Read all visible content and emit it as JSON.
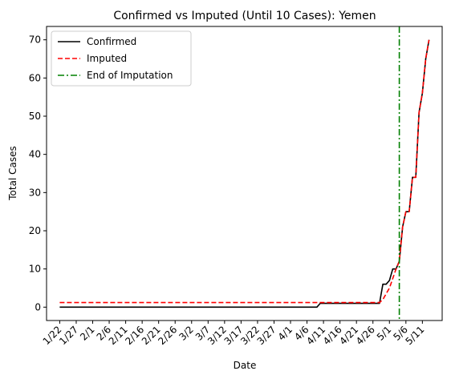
{
  "chart_data": {
    "type": "line",
    "title": "Confirmed vs Imputed (Until 10 Cases): Yemen",
    "xlabel": "Date",
    "ylabel": "Total Cases",
    "x_tick_labels": [
      "1/22",
      "1/27",
      "2/1",
      "2/6",
      "2/11",
      "2/16",
      "2/21",
      "2/26",
      "3/2",
      "3/7",
      "3/12",
      "3/17",
      "3/22",
      "3/27",
      "4/1",
      "4/6",
      "4/11",
      "4/16",
      "4/21",
      "4/26",
      "5/1",
      "5/6",
      "5/11"
    ],
    "xlim": [
      "1/18",
      "5/17"
    ],
    "ylim": [
      -3.5,
      73.5
    ],
    "y_ticks": [
      0,
      10,
      20,
      30,
      40,
      50,
      60,
      70
    ],
    "legend_position": "upper-left",
    "series": [
      {
        "name": "Confirmed",
        "color": "#000000",
        "style": "solid",
        "points": [
          [
            "1/22",
            0
          ],
          [
            "4/9",
            0
          ],
          [
            "4/10",
            1
          ],
          [
            "4/28",
            1
          ],
          [
            "4/29",
            6
          ],
          [
            "4/30",
            6
          ],
          [
            "5/1",
            7
          ],
          [
            "5/2",
            10
          ],
          [
            "5/3",
            10
          ],
          [
            "5/4",
            12
          ],
          [
            "5/5",
            21
          ],
          [
            "5/6",
            25
          ],
          [
            "5/7",
            25
          ],
          [
            "5/8",
            34
          ],
          [
            "5/9",
            34
          ],
          [
            "5/10",
            51
          ],
          [
            "5/11",
            56
          ],
          [
            "5/12",
            65
          ],
          [
            "5/13",
            70
          ]
        ]
      },
      {
        "name": "Imputed",
        "color": "#ff0000",
        "style": "dashed",
        "points": [
          [
            "1/22",
            1.2
          ],
          [
            "4/28",
            1.2
          ],
          [
            "4/29",
            2
          ],
          [
            "4/30",
            3.5
          ],
          [
            "5/1",
            5
          ],
          [
            "5/2",
            7.5
          ],
          [
            "5/3",
            10
          ],
          [
            "5/4",
            12
          ],
          [
            "5/5",
            21
          ],
          [
            "5/6",
            25
          ],
          [
            "5/7",
            25
          ],
          [
            "5/8",
            34
          ],
          [
            "5/9",
            34
          ],
          [
            "5/10",
            51
          ],
          [
            "5/11",
            56
          ],
          [
            "5/12",
            65
          ],
          [
            "5/13",
            70
          ]
        ]
      }
    ],
    "vertical_line": {
      "name": "End of Imputation",
      "x": "5/4",
      "color": "#008000",
      "style": "dashdot"
    }
  }
}
